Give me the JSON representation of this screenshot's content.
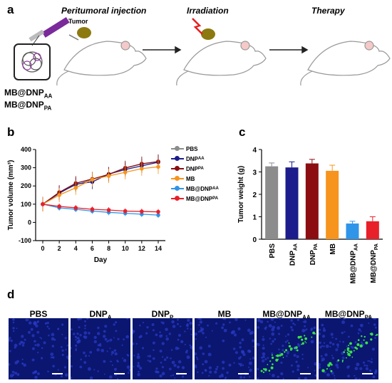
{
  "panel_a": {
    "label": "a",
    "stages": [
      "Peritumoral injection",
      "Irradiation",
      "Therapy"
    ],
    "tumor_label": "Tumor",
    "formulations": [
      {
        "base": "MB@DNP",
        "sub": "AA"
      },
      {
        "base": "MB@DNP",
        "sub": "PA"
      }
    ]
  },
  "panel_b": {
    "label": "b"
  },
  "panel_c": {
    "label": "c"
  },
  "panel_d": {
    "label": "d",
    "images": [
      {
        "base": "PBS",
        "sub": "",
        "green": false
      },
      {
        "base": "DNP",
        "sub": "A",
        "green": false
      },
      {
        "base": "DNP",
        "sub": "P",
        "green": false
      },
      {
        "base": "MB",
        "sub": "",
        "green": false
      },
      {
        "base": "MB@DNP",
        "sub": "AA",
        "green": true
      },
      {
        "base": "MB@DNP",
        "sub": "PA",
        "green": true
      }
    ]
  },
  "colors": {
    "PBS": "#8c8c8c",
    "DNP_AA": "#1c1c8c",
    "DNP_PA": "#8b0d12",
    "MB": "#f7941d",
    "MB@DNP_AA": "#2f95e8",
    "MB@DNP_PA": "#e8202a"
  },
  "chart_data": [
    {
      "type": "line",
      "xlabel": "Day",
      "ylabel": "Tumor volume (mm³)",
      "xlim": [
        0,
        14
      ],
      "ylim": [
        -100,
        400
      ],
      "x": [
        0,
        2,
        4,
        6,
        8,
        10,
        12,
        14
      ],
      "xticks": [
        "0",
        "2",
        "4",
        "6",
        "8",
        "10",
        "12",
        "14"
      ],
      "yticks": [
        "-100",
        "0",
        "100",
        "200",
        "300",
        "400"
      ],
      "legend": "right",
      "series": [
        {
          "name": "PBS",
          "name_sub": "",
          "values": [
            100,
            165,
            205,
            235,
            265,
            300,
            320,
            335
          ]
        },
        {
          "name": "DNP",
          "name_sub": "AA",
          "values": [
            100,
            160,
            210,
            222,
            265,
            290,
            310,
            330
          ]
        },
        {
          "name": "DNP",
          "name_sub": "PA",
          "values": [
            100,
            165,
            215,
            238,
            263,
            298,
            322,
            333
          ]
        },
        {
          "name": "MB",
          "name_sub": "",
          "values": [
            100,
            150,
            190,
            235,
            255,
            275,
            295,
            305
          ]
        },
        {
          "name": "MB@DNP",
          "name_sub": "AA",
          "values": [
            100,
            80,
            72,
            62,
            55,
            50,
            45,
            40
          ]
        },
        {
          "name": "MB@DNP",
          "name_sub": "PA",
          "values": [
            100,
            88,
            80,
            72,
            68,
            62,
            60,
            58
          ]
        }
      ]
    },
    {
      "type": "bar",
      "ylabel": "Tumor weight (g)",
      "ylim": [
        0,
        4
      ],
      "yticks": [
        "0",
        "1",
        "2",
        "3",
        "4"
      ],
      "categories": [
        {
          "base": "PBS",
          "sub": ""
        },
        {
          "base": "DNP",
          "sub": "AA"
        },
        {
          "base": "DNP",
          "sub": "PA"
        },
        {
          "base": "MB",
          "sub": ""
        },
        {
          "base": "MB@DNP",
          "sub": "AA"
        },
        {
          "base": "MB@DNP",
          "sub": "PA"
        }
      ],
      "values": [
        3.25,
        3.2,
        3.38,
        3.05,
        0.7,
        0.8
      ],
      "errors": [
        0.15,
        0.25,
        0.18,
        0.25,
        0.1,
        0.2
      ]
    }
  ]
}
